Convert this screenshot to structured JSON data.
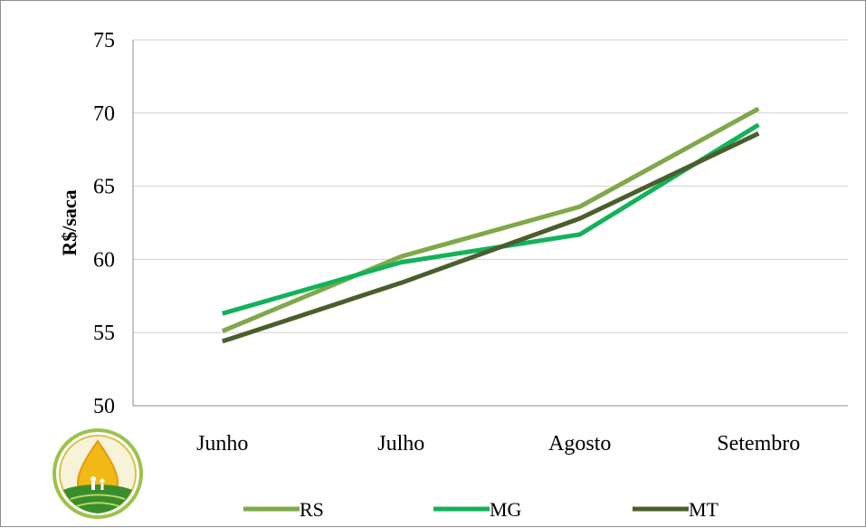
{
  "chart_data": {
    "type": "line",
    "title": "",
    "xlabel": "",
    "ylabel": "R$/saca",
    "categories": [
      "Junho",
      "Julho",
      "Agosto",
      "Setembro"
    ],
    "ylim": [
      50,
      75
    ],
    "yticks": [
      50,
      55,
      60,
      65,
      70,
      75
    ],
    "grid": true,
    "legend_position": "bottom",
    "series": [
      {
        "name": "RS",
        "color": "#7fa84a",
        "values": [
          55.1,
          60.2,
          63.6,
          70.3
        ]
      },
      {
        "name": "MG",
        "color": "#13b25a",
        "values": [
          56.3,
          59.8,
          61.7,
          69.2
        ]
      },
      {
        "name": "MT",
        "color": "#4a5e2c",
        "values": [
          54.4,
          58.4,
          62.8,
          68.6
        ]
      }
    ]
  },
  "logo": {
    "name": "drop-with-field-logo",
    "colors": [
      "#e8b418",
      "#3c8f2a",
      "#ffffff"
    ]
  }
}
